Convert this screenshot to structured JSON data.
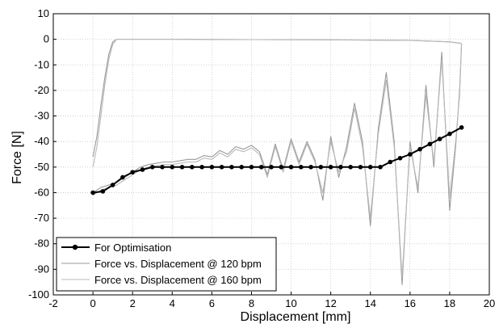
{
  "chart_data": {
    "type": "line",
    "title": "",
    "xlabel": "Displacement [mm]",
    "ylabel": "Force [N]",
    "xlim": [
      -2,
      20
    ],
    "ylim": [
      -100,
      10
    ],
    "x_ticks": [
      -2,
      0,
      2,
      4,
      6,
      8,
      10,
      12,
      14,
      16,
      18,
      20
    ],
    "y_ticks": [
      10,
      0,
      -10,
      -20,
      -30,
      -40,
      -50,
      -60,
      -70,
      -80,
      -90,
      -100
    ],
    "grid": true,
    "legend_position": "bottom-left",
    "series": [
      {
        "name": "For Optimisation",
        "color": "#000000",
        "marker": "circle",
        "x": [
          0,
          0.5,
          1,
          1.5,
          2,
          2.5,
          3,
          3.5,
          4,
          4.5,
          5,
          5.5,
          6,
          6.5,
          7,
          7.5,
          8,
          8.5,
          9,
          9.5,
          10,
          10.5,
          11,
          11.5,
          12,
          12.5,
          13,
          13.5,
          14,
          14.5,
          15,
          15.5,
          16,
          16.5,
          17,
          17.5,
          18,
          18.6
        ],
        "y": [
          -60,
          -59.5,
          -57,
          -54,
          -52,
          -51,
          -50,
          -50,
          -50,
          -50,
          -50,
          -50,
          -50,
          -50,
          -50,
          -50,
          -50,
          -50,
          -50,
          -50,
          -50,
          -50,
          -50,
          -50,
          -50,
          -50,
          -50,
          -50,
          -50,
          -50,
          -48,
          -46.5,
          -45,
          -43,
          -41,
          -39,
          -37,
          -34.5
        ]
      },
      {
        "name": "Force vs. Displacement @ 120 bpm",
        "color": "#999999",
        "x": [
          0,
          0.2,
          0.4,
          0.6,
          0.8,
          1.0,
          1.2,
          2.0,
          4.0,
          8.0,
          12.0,
          16.0,
          18.0,
          18.5,
          18.6,
          18.5,
          18.3,
          18.0,
          17.6,
          17.2,
          16.8,
          16.4,
          16.0,
          15.6,
          15.2,
          14.8,
          14.4,
          14.0,
          13.6,
          13.2,
          12.8,
          12.4,
          12.0,
          11.6,
          11.2,
          10.8,
          10.4,
          10.0,
          9.6,
          9.2,
          8.8,
          8.4,
          8.0,
          7.6,
          7.2,
          6.8,
          6.4,
          6.0,
          5.6,
          5.2,
          4.8,
          4.4,
          4.0,
          3.6,
          3.2,
          2.8,
          2.4,
          2.0,
          1.6,
          1.2,
          0.8,
          0.4,
          0.0
        ],
        "y": [
          -46,
          -38,
          -26,
          -15,
          -6,
          -1,
          0,
          0,
          0,
          -0.1,
          -0.2,
          -0.4,
          -1,
          -1.5,
          -1.8,
          -20,
          -42,
          -67,
          -5,
          -50,
          -18,
          -60,
          -40,
          -96,
          -40,
          -13,
          -35,
          -73,
          -40,
          -25,
          -42,
          -54,
          -38,
          -63,
          -47,
          -40,
          -48,
          -39,
          -51,
          -41,
          -53,
          -44,
          -41.5,
          -43,
          -42,
          -45,
          -43.5,
          -46,
          -45.5,
          -47,
          -47,
          -47.5,
          -48,
          -48,
          -48.5,
          -49,
          -50,
          -52,
          -54,
          -56,
          -57,
          -58,
          -60
        ]
      },
      {
        "name": "Force vs. Displacement @ 160 bpm",
        "color": "#b8b8b8",
        "x": [
          0,
          0.2,
          0.4,
          0.6,
          0.8,
          1.0,
          1.2,
          2.0,
          4.0,
          8.0,
          12.0,
          16.0,
          18.0,
          18.5,
          18.6,
          18.5,
          18.3,
          18.0,
          17.6,
          17.2,
          16.8,
          16.4,
          16.0,
          15.6,
          15.2,
          14.8,
          14.4,
          14.0,
          13.6,
          13.2,
          12.8,
          12.4,
          12.0,
          11.6,
          11.2,
          10.8,
          10.4,
          10.0,
          9.6,
          9.2,
          8.8,
          8.4,
          8.0,
          7.6,
          7.2,
          6.8,
          6.4,
          6.0,
          5.6,
          5.2,
          4.8,
          4.4,
          4.0,
          3.6,
          3.2,
          2.8,
          2.4,
          2.0,
          1.6,
          1.2,
          0.8,
          0.4,
          0.0
        ],
        "y": [
          -50,
          -42,
          -30,
          -18,
          -8,
          -2,
          0,
          0,
          0,
          -0.1,
          -0.2,
          -0.4,
          -1,
          -1.5,
          -1.8,
          -22,
          -40,
          -62,
          -8,
          -48,
          -22,
          -58,
          -42,
          -93,
          -42,
          -16,
          -37,
          -70,
          -42,
          -27,
          -44,
          -52,
          -40,
          -60,
          -48,
          -41,
          -49,
          -40,
          -52,
          -42,
          -54,
          -45,
          -42.5,
          -44,
          -43,
          -46,
          -44.5,
          -47,
          -46.5,
          -48,
          -48,
          -48.5,
          -49,
          -49,
          -49.5,
          -50,
          -51,
          -53,
          -55,
          -57,
          -58,
          -59,
          -61
        ]
      }
    ]
  }
}
